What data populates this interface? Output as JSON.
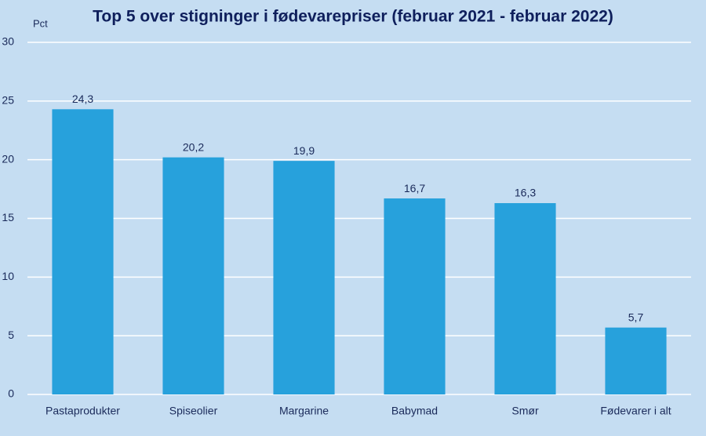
{
  "chart_data": {
    "type": "bar",
    "title": "Top 5 over stigninger i fødevarepriser (februar 2021 - februar 2022)",
    "y_label": "Pct",
    "categories": [
      "Pastaprodukter",
      "Spiseolier",
      "Margarine",
      "Babymad",
      "Smør",
      "Fødevarer i alt"
    ],
    "values": [
      24.3,
      20.2,
      19.9,
      16.7,
      16.3,
      5.7
    ],
    "value_labels": [
      "24,3",
      "20,2",
      "19,9",
      "16,7",
      "16,3",
      "5,7"
    ],
    "color": "#27a1dc",
    "ylim": [
      0,
      30
    ],
    "yticks": [
      0,
      5,
      10,
      15,
      20,
      25,
      30
    ],
    "grid": true
  }
}
